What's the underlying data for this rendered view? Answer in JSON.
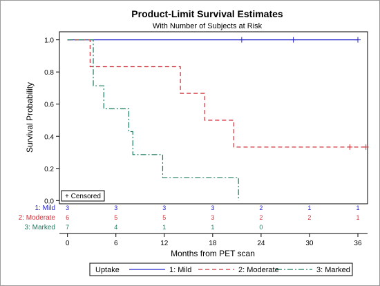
{
  "chart_data": {
    "type": "line",
    "title": "Product-Limit Survival Estimates",
    "subtitle": "With Number of Subjects at Risk",
    "xlabel": "Months from PET scan",
    "ylabel": "Survival Probability",
    "xlim": [
      -1,
      37.2
    ],
    "ylim": [
      -0.02,
      1.05
    ],
    "xticks": [
      0,
      6,
      12,
      18,
      24,
      30,
      36
    ],
    "xtick_labels": [
      "0",
      "6",
      "12",
      "18",
      "24",
      "30",
      "36"
    ],
    "yticks": [
      0.0,
      0.2,
      0.4,
      0.6,
      0.8,
      1.0
    ],
    "ytick_labels": [
      "0.0",
      "0.2",
      "0.4",
      "0.6",
      "0.8",
      "1.0"
    ],
    "censored_note": "+ Censored",
    "series": [
      {
        "name": "1: Mild",
        "color": "#2323cc",
        "dash": "solid",
        "steps": [
          [
            0,
            1.0
          ],
          [
            36,
            1.0
          ]
        ],
        "censored": [
          [
            21.6,
            1.0
          ],
          [
            28.0,
            1.0
          ],
          [
            36.0,
            1.0
          ]
        ]
      },
      {
        "name": "2: Moderate",
        "color": "#d0303a",
        "dash": "dashed",
        "steps": [
          [
            0,
            1.0
          ],
          [
            2.8,
            0.833
          ],
          [
            14.0,
            0.667
          ],
          [
            17.0,
            0.5
          ],
          [
            20.6,
            0.333
          ],
          [
            37,
            0.333
          ]
        ],
        "censored": [
          [
            35.0,
            0.333
          ],
          [
            37.0,
            0.333
          ]
        ]
      },
      {
        "name": "3: Marked",
        "color": "#1a7a5e",
        "dash": "dashdot",
        "steps": [
          [
            0,
            1.0
          ],
          [
            3.2,
            0.714
          ],
          [
            4.5,
            0.571
          ],
          [
            7.6,
            0.429
          ],
          [
            8.1,
            0.286
          ],
          [
            11.8,
            0.143
          ],
          [
            21.2,
            0.0
          ]
        ],
        "censored": []
      }
    ],
    "at_risk": {
      "times": [
        0,
        6,
        12,
        18,
        24,
        30,
        36
      ],
      "rows": [
        {
          "label": "1: Mild",
          "color": "#2323cc",
          "counts": [
            "3",
            "3",
            "3",
            "3",
            "2",
            "1",
            "1"
          ]
        },
        {
          "label": "2: Moderate",
          "color": "#d0303a",
          "counts": [
            "6",
            "5",
            "5",
            "3",
            "2",
            "2",
            "1"
          ]
        },
        {
          "label": "3: Marked",
          "color": "#1a7a5e",
          "counts": [
            "7",
            "4",
            "1",
            "1",
            "0",
            "",
            ""
          ]
        }
      ]
    },
    "legend": {
      "title": "Uptake",
      "placement": "bottom",
      "entries": [
        "1: Mild",
        "2: Moderate",
        "3: Marked"
      ]
    }
  }
}
